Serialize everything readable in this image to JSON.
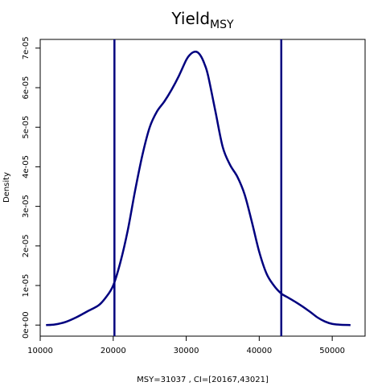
{
  "chart_data": {
    "type": "line",
    "title": "Yield",
    "title_subscript": "MSY",
    "xlabel": "MSY=31037 , CI=[20167,43021]",
    "ylabel": "Density",
    "xlim": [
      10000,
      54500
    ],
    "ylim": [
      -2.8e-06,
      7.22e-05
    ],
    "x_ticks": [
      10000,
      20000,
      30000,
      40000,
      50000
    ],
    "x_tick_labels": [
      "10000",
      "20000",
      "30000",
      "40000",
      "50000"
    ],
    "y_ticks": [
      0,
      1e-05,
      2e-05,
      3e-05,
      4e-05,
      5e-05,
      6e-05,
      7e-05
    ],
    "y_tick_labels": [
      "0e+00",
      "1e-05",
      "2e-05",
      "3e-05",
      "4e-05",
      "5e-05",
      "6e-05",
      "7e-05"
    ],
    "grid": false,
    "line_color": "#00007f",
    "series": [
      {
        "x": [
          10800,
          12000,
          13500,
          15000,
          16500,
          18000,
          19000,
          20000,
          21000,
          22000,
          23000,
          24000,
          25000,
          26000,
          27000,
          28000,
          29000,
          30000,
          30500,
          31000,
          31500,
          32000,
          32500,
          33000,
          34000,
          35000,
          36000,
          37000,
          38000,
          39000,
          40000,
          41000,
          42000,
          43000,
          44000,
          45000,
          46000,
          47000,
          48000,
          49000,
          50000,
          51000,
          52500
        ],
        "y": [
          0.0,
          1.5e-07,
          8e-07,
          2e-06,
          3.5e-06,
          5e-06,
          7e-06,
          1e-05,
          1.6e-05,
          2.4e-05,
          3.4e-05,
          4.3e-05,
          5e-05,
          5.4e-05,
          5.65e-05,
          5.95e-05,
          6.3e-05,
          6.7e-05,
          6.83e-05,
          6.9e-05,
          6.9e-05,
          6.8e-05,
          6.6e-05,
          6.3e-05,
          5.4e-05,
          4.5e-05,
          4.05e-05,
          3.75e-05,
          3.3e-05,
          2.6e-05,
          1.85e-05,
          1.3e-05,
          1e-05,
          8e-06,
          6.9e-06,
          5.8e-06,
          4.6e-06,
          3.3e-06,
          1.9e-06,
          9e-07,
          3e-07,
          1e-07,
          0.0
        ]
      }
    ],
    "ci_lines": [
      20167,
      43021
    ]
  }
}
